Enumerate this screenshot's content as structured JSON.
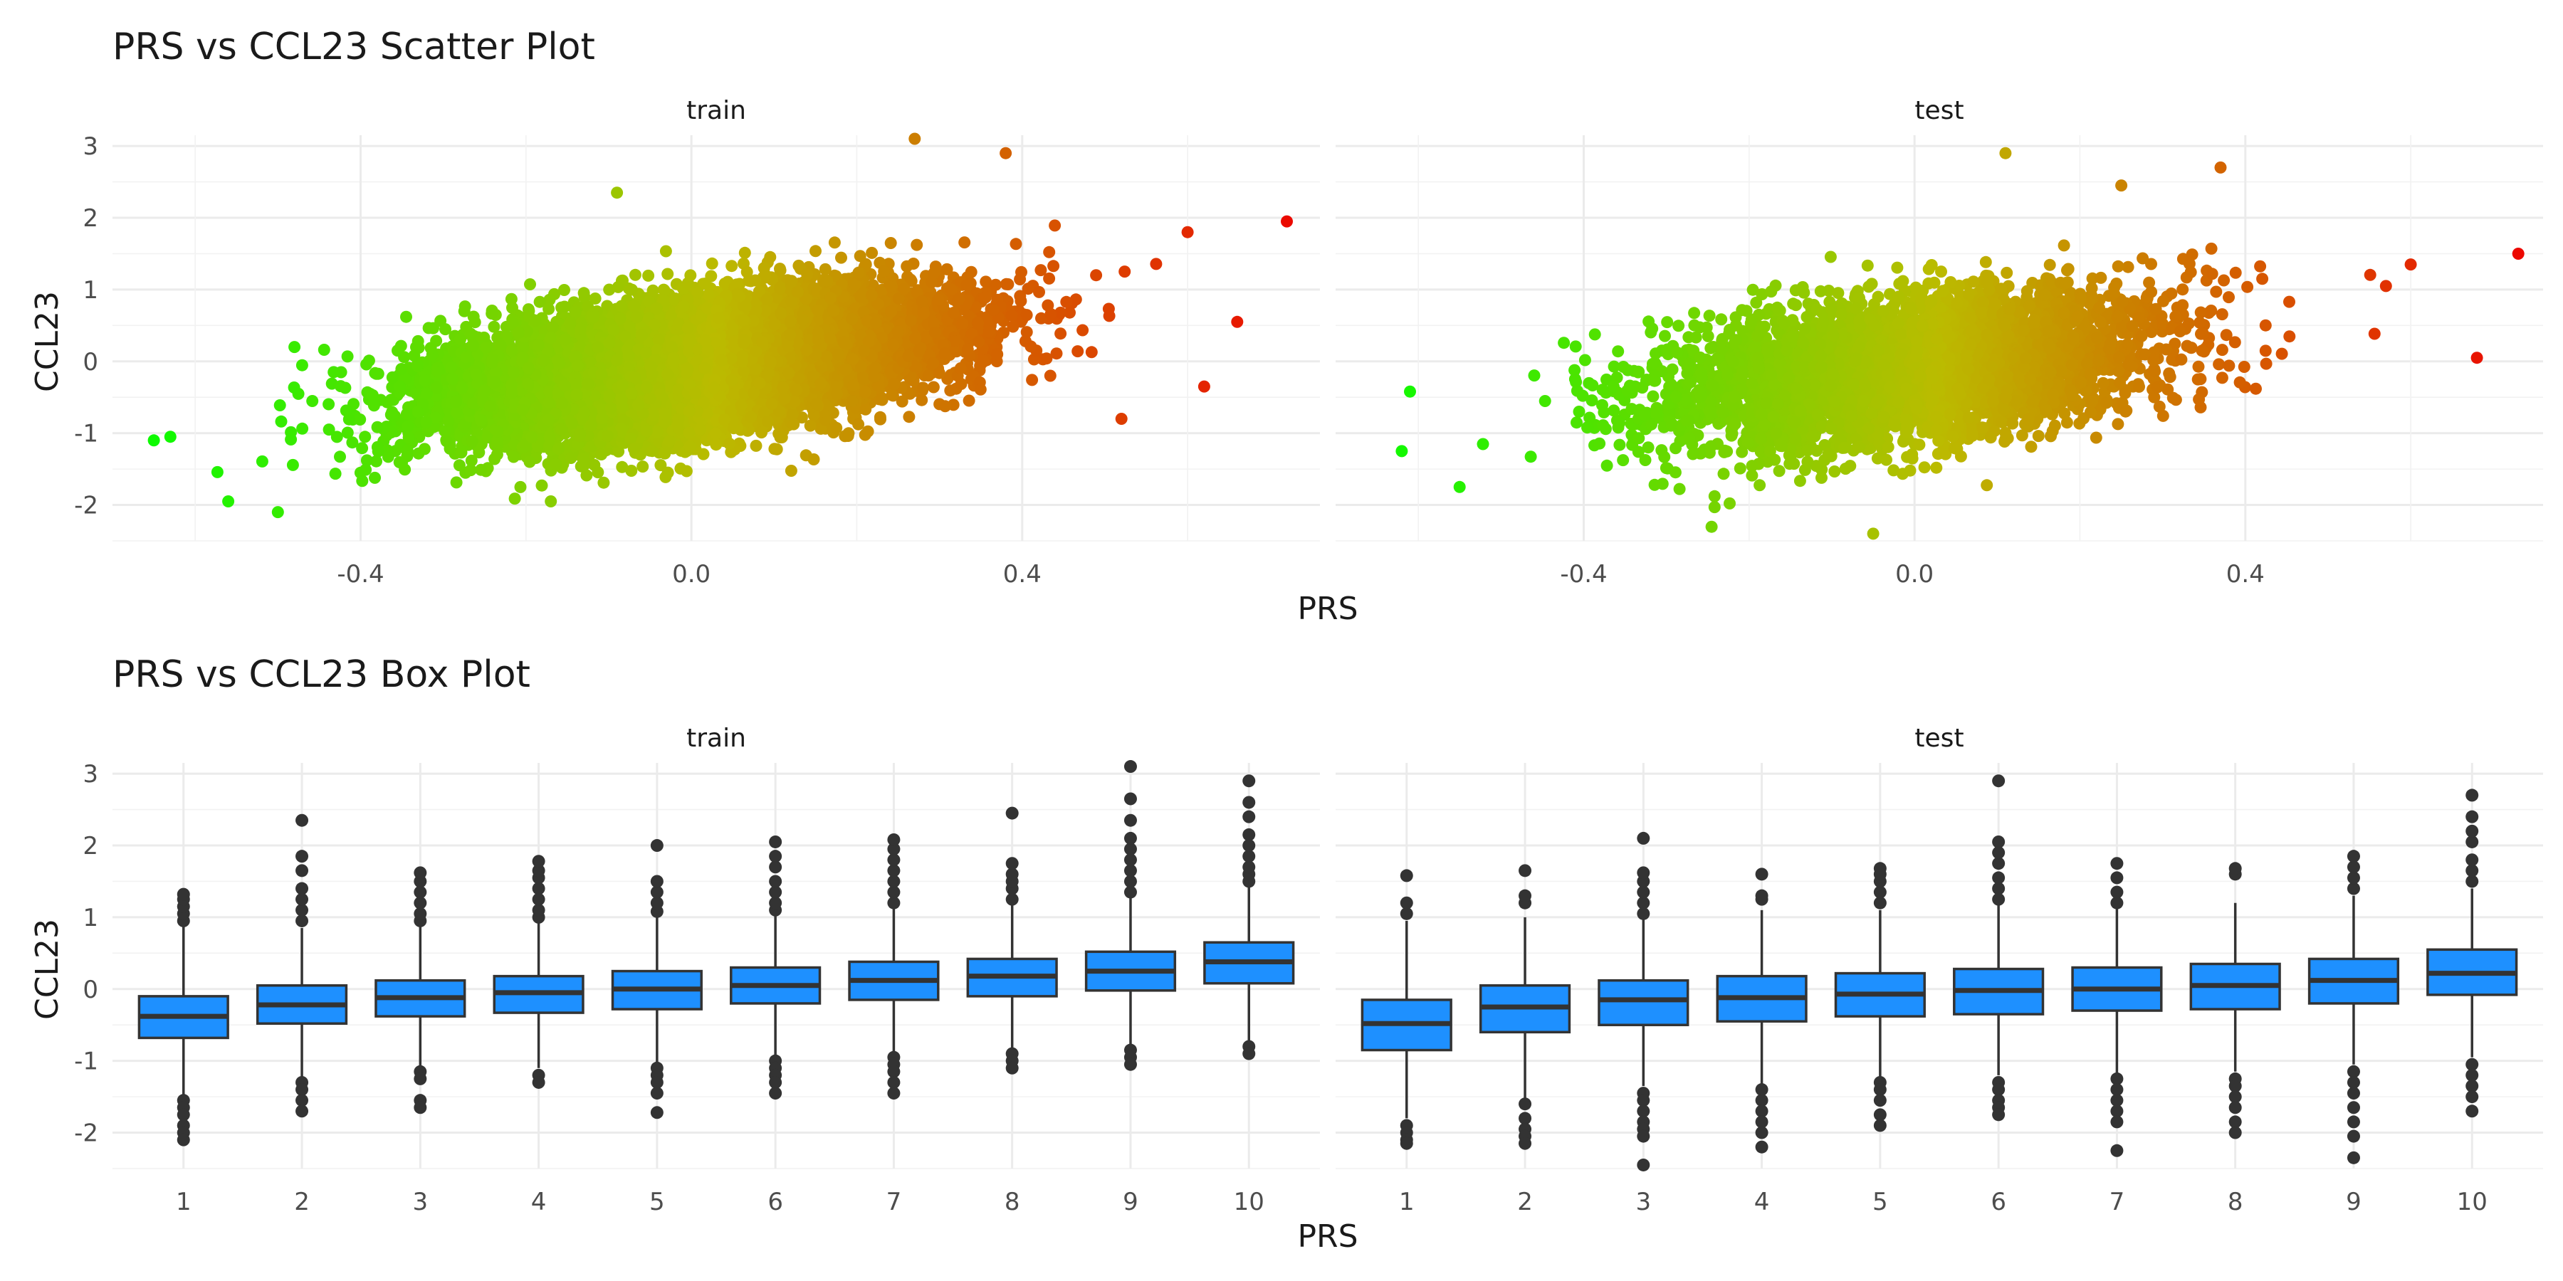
{
  "colors": {
    "low": "#00ff00",
    "mid": "#bbbb00",
    "high": "#ee0000",
    "box_fill": "#1e90ff",
    "box_line": "#333333",
    "grid": "#ebebeb"
  },
  "chart_data": [
    {
      "type": "scatter",
      "title": "PRS vs CCL23 Scatter Plot",
      "xlabel": "PRS",
      "ylabel": "CCL23",
      "color_by": "PRS",
      "color_scale": [
        "#00ff00",
        "#bbbb00",
        "#ee0000"
      ],
      "xlim": [
        -0.7,
        0.76
      ],
      "ylim": [
        -2.5,
        3.15
      ],
      "x_ticks": [
        -0.4,
        0.0,
        0.4
      ],
      "x_tick_labels": [
        "-0.4",
        "0.0",
        "0.4"
      ],
      "y_ticks": [
        -2,
        -1,
        0,
        1,
        2,
        3
      ],
      "y_tick_labels": [
        "-2",
        "-1",
        "0",
        "1",
        "2",
        "3"
      ],
      "grid": true,
      "legend": "none",
      "panels": [
        {
          "name": "train",
          "n_points": 10000,
          "trend": {
            "intercept": -0.05,
            "slope": 1.55,
            "x_mean": 0.0,
            "x_sd": 0.15,
            "noise_sd": 0.45
          },
          "outliers": [
            [
              -0.65,
              -1.1
            ],
            [
              -0.63,
              -1.05
            ],
            [
              -0.56,
              -1.95
            ],
            [
              -0.5,
              -2.1
            ],
            [
              -0.48,
              0.2
            ],
            [
              -0.17,
              -1.95
            ],
            [
              -0.09,
              2.35
            ],
            [
              0.27,
              3.1
            ],
            [
              0.38,
              2.9
            ],
            [
              0.52,
              -0.8
            ],
            [
              0.6,
              1.8
            ],
            [
              0.62,
              -0.35
            ],
            [
              0.72,
              1.95
            ],
            [
              0.66,
              0.55
            ]
          ]
        },
        {
          "name": "test",
          "n_points": 4000,
          "trend": {
            "intercept": -0.1,
            "slope": 1.35,
            "x_mean": 0.0,
            "x_sd": 0.15,
            "noise_sd": 0.5
          },
          "outliers": [
            [
              -0.62,
              -1.25
            ],
            [
              -0.61,
              -0.42
            ],
            [
              -0.55,
              -1.75
            ],
            [
              -0.05,
              -2.4
            ],
            [
              0.11,
              2.9
            ],
            [
              0.25,
              2.45
            ],
            [
              0.37,
              2.7
            ],
            [
              0.57,
              1.05
            ],
            [
              0.6,
              1.35
            ],
            [
              0.68,
              0.05
            ],
            [
              0.73,
              1.5
            ]
          ]
        }
      ]
    },
    {
      "type": "box",
      "title": "PRS vs CCL23 Box Plot",
      "xlabel": "PRS",
      "ylabel": "CCL23",
      "categories": [
        "1",
        "2",
        "3",
        "4",
        "5",
        "6",
        "7",
        "8",
        "9",
        "10"
      ],
      "ylim": [
        -2.5,
        3.15
      ],
      "y_ticks": [
        -2,
        -1,
        0,
        1,
        2,
        3
      ],
      "y_tick_labels": [
        "-2",
        "-1",
        "0",
        "1",
        "2",
        "3"
      ],
      "grid": true,
      "legend": "none",
      "panels": [
        {
          "name": "train",
          "boxes": [
            {
              "q1": -0.68,
              "median": -0.38,
              "q3": -0.1,
              "lower": -1.5,
              "upper": 0.9,
              "outliers": [
                -1.55,
                -1.65,
                -1.75,
                -1.9,
                -2.0,
                -2.1,
                0.95,
                1.05,
                1.15,
                1.25,
                1.32
              ]
            },
            {
              "q1": -0.48,
              "median": -0.22,
              "q3": 0.05,
              "lower": -1.25,
              "upper": 0.85,
              "outliers": [
                -1.3,
                -1.4,
                -1.55,
                -1.7,
                0.95,
                1.1,
                1.25,
                1.4,
                1.65,
                1.85,
                2.35
              ]
            },
            {
              "q1": -0.38,
              "median": -0.12,
              "q3": 0.12,
              "lower": -1.1,
              "upper": 0.88,
              "outliers": [
                -1.15,
                -1.25,
                -1.55,
                -1.65,
                0.95,
                1.05,
                1.2,
                1.35,
                1.5,
                1.62
              ]
            },
            {
              "q1": -0.33,
              "median": -0.05,
              "q3": 0.18,
              "lower": -1.1,
              "upper": 0.95,
              "outliers": [
                -1.2,
                -1.3,
                1.0,
                1.1,
                1.25,
                1.4,
                1.55,
                1.65,
                1.78
              ]
            },
            {
              "q1": -0.28,
              "median": 0.0,
              "q3": 0.25,
              "lower": -1.05,
              "upper": 1.0,
              "outliers": [
                -1.1,
                -1.2,
                -1.3,
                -1.45,
                -1.72,
                1.08,
                1.2,
                1.35,
                1.5,
                2.0
              ]
            },
            {
              "q1": -0.2,
              "median": 0.05,
              "q3": 0.3,
              "lower": -0.95,
              "upper": 1.05,
              "outliers": [
                -1.0,
                -1.1,
                -1.2,
                -1.3,
                -1.45,
                1.1,
                1.2,
                1.35,
                1.5,
                1.7,
                1.85,
                2.05
              ]
            },
            {
              "q1": -0.15,
              "median": 0.12,
              "q3": 0.38,
              "lower": -0.92,
              "upper": 1.15,
              "outliers": [
                -0.95,
                -1.05,
                -1.15,
                -1.3,
                -1.45,
                1.2,
                1.35,
                1.5,
                1.65,
                1.8,
                1.95,
                2.08
              ]
            },
            {
              "q1": -0.1,
              "median": 0.18,
              "q3": 0.42,
              "lower": -0.85,
              "upper": 1.18,
              "outliers": [
                -0.9,
                -1.0,
                -1.1,
                1.25,
                1.4,
                1.5,
                1.6,
                1.75,
                2.45
              ]
            },
            {
              "q1": -0.02,
              "median": 0.25,
              "q3": 0.52,
              "lower": -0.78,
              "upper": 1.3,
              "outliers": [
                -0.85,
                -0.95,
                -1.05,
                1.35,
                1.5,
                1.65,
                1.8,
                1.95,
                2.1,
                2.35,
                2.65,
                3.1
              ]
            },
            {
              "q1": 0.08,
              "median": 0.38,
              "q3": 0.65,
              "lower": -0.72,
              "upper": 1.45,
              "outliers": [
                -0.8,
                -0.9,
                1.5,
                1.6,
                1.7,
                1.85,
                2.0,
                2.15,
                2.4,
                2.6,
                2.9
              ]
            }
          ]
        },
        {
          "name": "test",
          "boxes": [
            {
              "q1": -0.85,
              "median": -0.48,
              "q3": -0.15,
              "lower": -1.8,
              "upper": 0.95,
              "outliers": [
                -1.9,
                -2.0,
                -2.1,
                -2.15,
                1.05,
                1.2,
                1.58
              ]
            },
            {
              "q1": -0.6,
              "median": -0.25,
              "q3": 0.05,
              "lower": -1.55,
              "upper": 1.0,
              "outliers": [
                -1.6,
                -1.8,
                -1.95,
                -2.05,
                -2.15,
                1.2,
                1.3,
                1.65
              ]
            },
            {
              "q1": -0.5,
              "median": -0.15,
              "q3": 0.12,
              "lower": -1.35,
              "upper": 1.0,
              "outliers": [
                -1.45,
                -1.55,
                -1.7,
                -1.85,
                -1.95,
                -2.05,
                -2.45,
                1.05,
                1.2,
                1.35,
                1.5,
                1.62,
                2.1
              ]
            },
            {
              "q1": -0.45,
              "median": -0.12,
              "q3": 0.18,
              "lower": -1.35,
              "upper": 1.1,
              "outliers": [
                -1.4,
                -1.55,
                -1.7,
                -1.85,
                -2.0,
                -2.2,
                1.25,
                1.3,
                1.6
              ]
            },
            {
              "q1": -0.38,
              "median": -0.07,
              "q3": 0.22,
              "lower": -1.25,
              "upper": 1.1,
              "outliers": [
                -1.3,
                -1.4,
                -1.55,
                -1.75,
                -1.9,
                1.2,
                1.35,
                1.5,
                1.6,
                1.68
              ]
            },
            {
              "q1": -0.35,
              "median": -0.02,
              "q3": 0.28,
              "lower": -1.2,
              "upper": 1.2,
              "outliers": [
                -1.3,
                -1.4,
                -1.55,
                -1.65,
                -1.75,
                1.25,
                1.4,
                1.55,
                1.75,
                1.9,
                2.05,
                2.9
              ]
            },
            {
              "q1": -0.3,
              "median": 0.0,
              "q3": 0.3,
              "lower": -1.2,
              "upper": 1.15,
              "outliers": [
                -1.25,
                -1.4,
                -1.55,
                -1.7,
                -1.85,
                -2.25,
                1.2,
                1.35,
                1.55,
                1.75
              ]
            },
            {
              "q1": -0.28,
              "median": 0.05,
              "q3": 0.35,
              "lower": -1.15,
              "upper": 1.2,
              "outliers": [
                -1.25,
                -1.35,
                -1.5,
                -1.65,
                -1.85,
                -2.0,
                1.6,
                1.68
              ]
            },
            {
              "q1": -0.2,
              "median": 0.12,
              "q3": 0.42,
              "lower": -1.05,
              "upper": 1.3,
              "outliers": [
                -1.15,
                -1.3,
                -1.45,
                -1.65,
                -1.85,
                -2.05,
                -2.35,
                1.4,
                1.55,
                1.7,
                1.85
              ]
            },
            {
              "q1": -0.08,
              "median": 0.22,
              "q3": 0.55,
              "lower": -0.95,
              "upper": 1.4,
              "outliers": [
                -1.05,
                -1.2,
                -1.35,
                -1.5,
                -1.7,
                1.5,
                1.65,
                1.8,
                2.05,
                2.2,
                2.4,
                2.7
              ]
            }
          ]
        }
      ]
    }
  ]
}
